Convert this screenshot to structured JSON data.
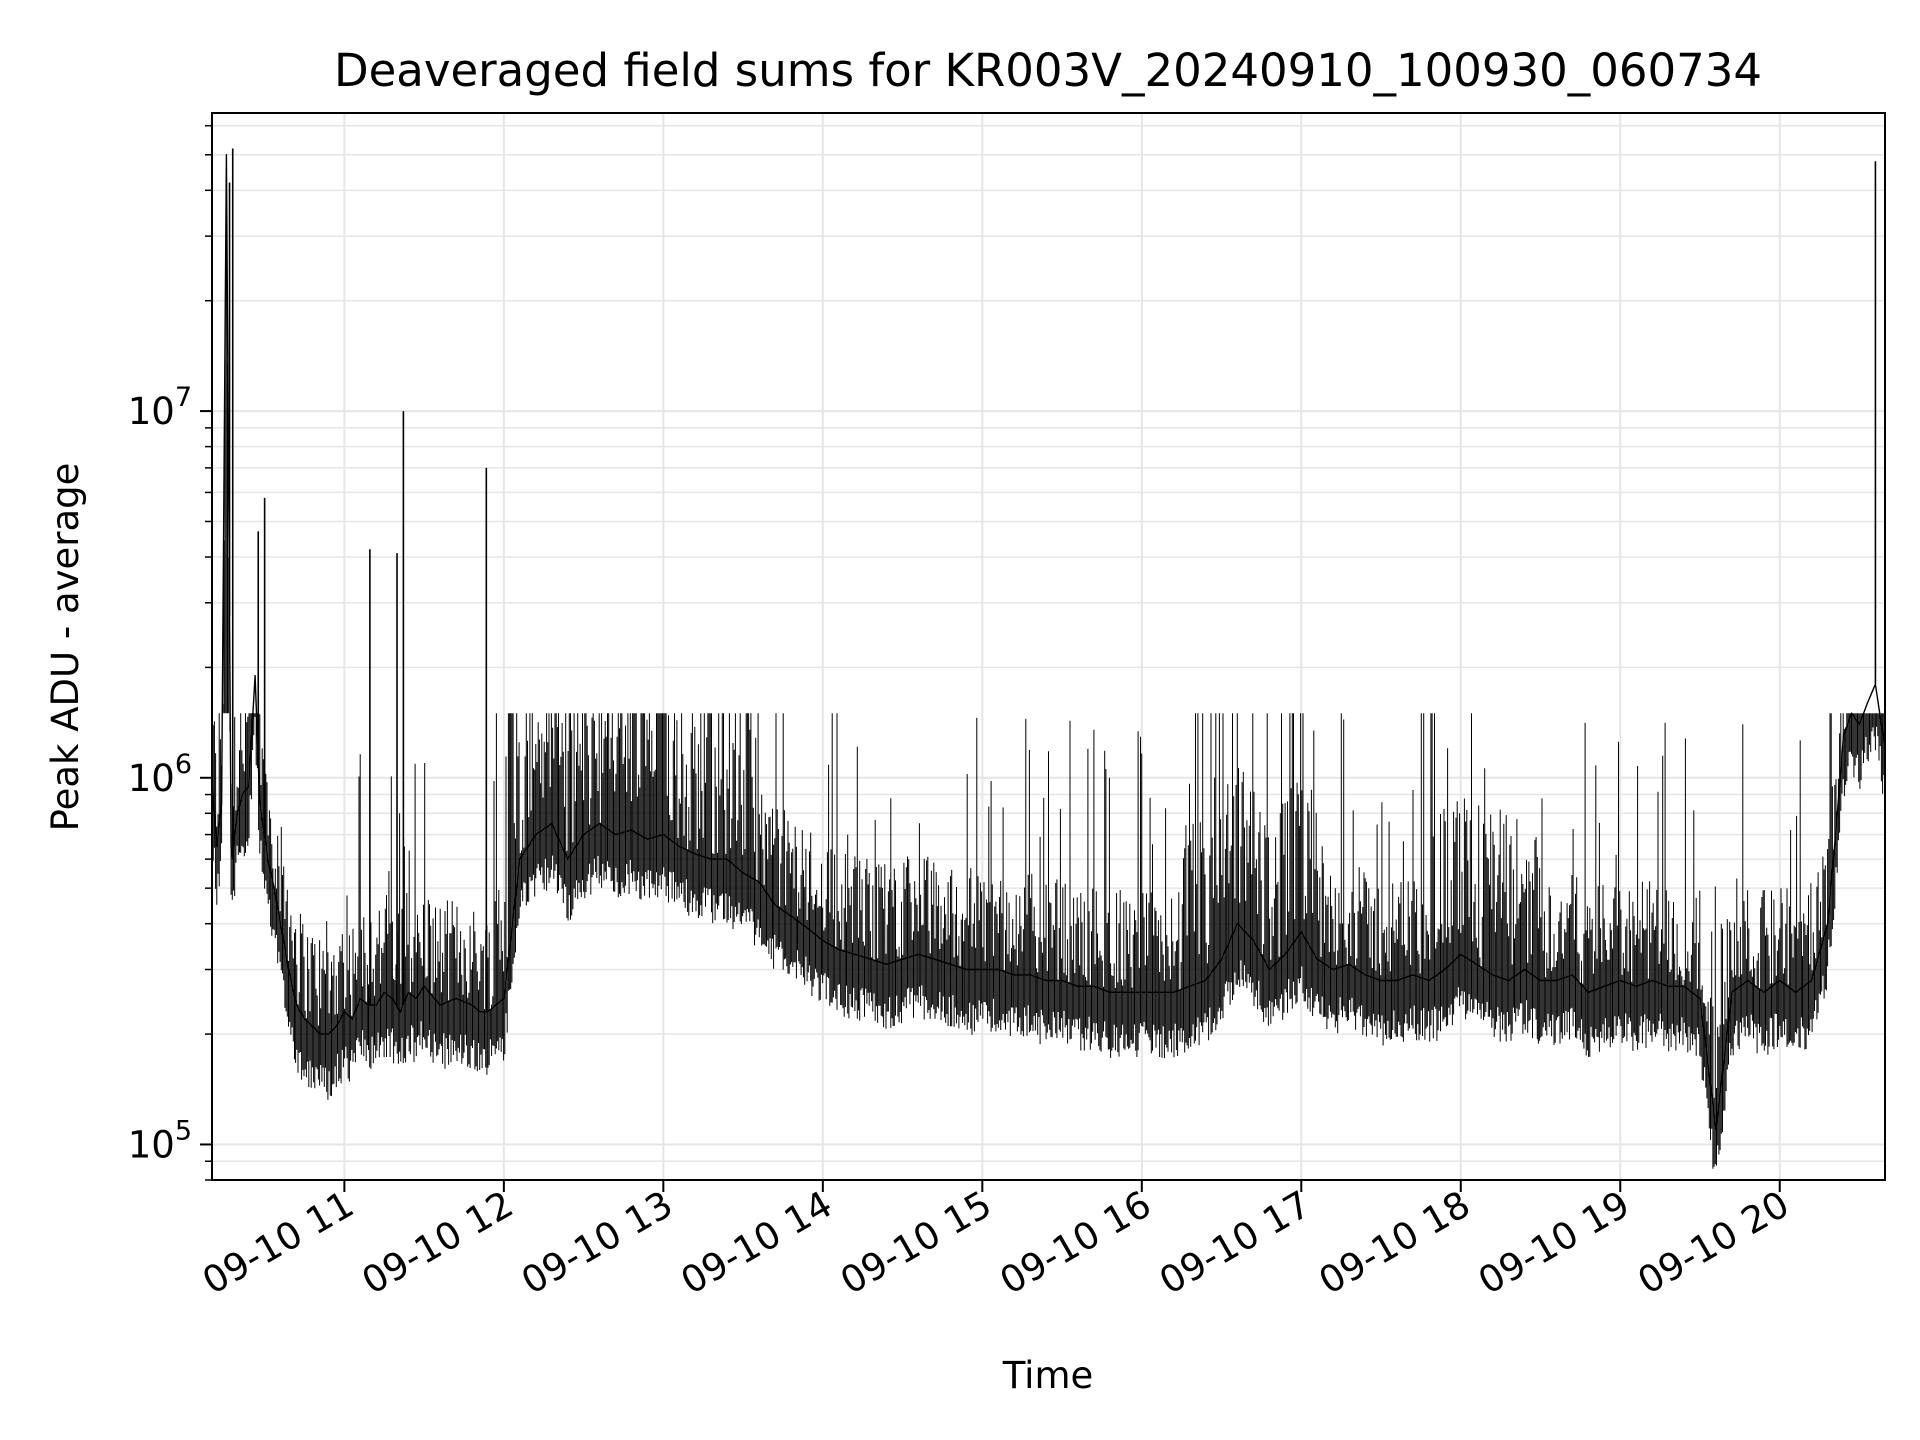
{
  "chart_data": {
    "type": "line",
    "title": "Deaveraged field sums for KR003V_20240910_100930_060734",
    "xlabel": "Time",
    "ylabel": "Peak ADU - average",
    "yscale": "log",
    "ylim": [
      80000,
      65000000
    ],
    "xlim_hours": [
      10.17,
      20.66
    ],
    "grid": true,
    "line_color": "#000000",
    "x_ticks": [
      {
        "hour": 11,
        "label": "09-10 11"
      },
      {
        "hour": 12,
        "label": "09-10 12"
      },
      {
        "hour": 13,
        "label": "09-10 13"
      },
      {
        "hour": 14,
        "label": "09-10 14"
      },
      {
        "hour": 15,
        "label": "09-10 15"
      },
      {
        "hour": 16,
        "label": "09-10 16"
      },
      {
        "hour": 17,
        "label": "09-10 17"
      },
      {
        "hour": 18,
        "label": "09-10 18"
      },
      {
        "hour": 19,
        "label": "09-10 19"
      },
      {
        "hour": 20,
        "label": "09-10 20"
      }
    ],
    "y_ticks": [
      {
        "value": 100000,
        "base": "10",
        "exp": "5"
      },
      {
        "value": 1000000,
        "base": "10",
        "exp": "6"
      },
      {
        "value": 10000000,
        "base": "10",
        "exp": "7"
      }
    ],
    "series": [
      {
        "x": [
          10.17,
          10.2,
          10.23,
          10.26,
          10.29,
          10.3,
          10.31,
          10.33,
          10.36,
          10.4,
          10.44,
          10.47,
          10.5,
          10.52,
          10.56,
          10.6,
          10.65,
          10.7,
          10.75,
          10.8,
          10.85,
          10.9,
          10.95,
          11.0,
          11.05,
          11.1,
          11.15,
          11.2,
          11.25,
          11.3,
          11.35,
          11.4,
          11.45,
          11.5,
          11.6,
          11.7,
          11.8,
          11.85,
          11.9,
          11.95,
          12.0,
          12.1,
          12.2,
          12.3,
          12.4,
          12.5,
          12.6,
          12.7,
          12.8,
          12.9,
          13.0,
          13.1,
          13.2,
          13.3,
          13.4,
          13.5,
          13.6,
          13.7,
          13.8,
          13.9,
          14.0,
          14.1,
          14.2,
          14.3,
          14.4,
          14.5,
          14.6,
          14.7,
          14.8,
          14.9,
          15.0,
          15.1,
          15.2,
          15.3,
          15.4,
          15.5,
          15.6,
          15.7,
          15.8,
          15.9,
          16.0,
          16.1,
          16.2,
          16.3,
          16.4,
          16.5,
          16.6,
          16.7,
          16.8,
          16.9,
          17.0,
          17.1,
          17.2,
          17.3,
          17.4,
          17.5,
          17.6,
          17.7,
          17.8,
          17.9,
          18.0,
          18.1,
          18.2,
          18.3,
          18.4,
          18.5,
          18.6,
          18.7,
          18.8,
          18.9,
          19.0,
          19.1,
          19.2,
          19.3,
          19.4,
          19.5,
          19.6,
          19.7,
          19.8,
          19.9,
          20.0,
          20.1,
          20.2,
          20.3,
          20.35,
          20.4,
          20.45,
          20.5,
          20.55,
          20.6,
          20.66
        ],
        "y": [
          1000000,
          650000,
          850000,
          50000000,
          650000,
          600000,
          700000,
          800000,
          900000,
          950000,
          1900000,
          850000,
          700000,
          600000,
          500000,
          400000,
          300000,
          240000,
          220000,
          210000,
          200000,
          200000,
          210000,
          230000,
          220000,
          250000,
          240000,
          240000,
          260000,
          250000,
          230000,
          260000,
          250000,
          270000,
          240000,
          250000,
          240000,
          230000,
          230000,
          240000,
          250000,
          600000,
          700000,
          750000,
          600000,
          700000,
          750000,
          700000,
          720000,
          680000,
          700000,
          650000,
          620000,
          600000,
          600000,
          550000,
          520000,
          450000,
          420000,
          390000,
          360000,
          340000,
          330000,
          320000,
          310000,
          320000,
          330000,
          320000,
          310000,
          300000,
          300000,
          300000,
          290000,
          290000,
          280000,
          280000,
          270000,
          270000,
          260000,
          260000,
          260000,
          260000,
          260000,
          270000,
          280000,
          320000,
          400000,
          360000,
          300000,
          330000,
          380000,
          320000,
          300000,
          310000,
          290000,
          280000,
          280000,
          290000,
          280000,
          300000,
          330000,
          310000,
          290000,
          280000,
          300000,
          280000,
          280000,
          290000,
          260000,
          270000,
          280000,
          270000,
          280000,
          270000,
          270000,
          250000,
          110000,
          260000,
          280000,
          260000,
          280000,
          260000,
          280000,
          400000,
          700000,
          1300000,
          1500000,
          1400000,
          1600000,
          1800000,
          1200000
        ]
      }
    ],
    "spikes": [
      {
        "x": 10.28,
        "y": 42000000
      },
      {
        "x": 10.3,
        "y": 52000000
      },
      {
        "x": 10.46,
        "y": 4700000
      },
      {
        "x": 10.5,
        "y": 5800000
      },
      {
        "x": 11.16,
        "y": 4200000
      },
      {
        "x": 11.33,
        "y": 4100000
      },
      {
        "x": 11.37,
        "y": 10000000
      },
      {
        "x": 11.89,
        "y": 7000000
      },
      {
        "x": 20.6,
        "y": 48000000
      }
    ]
  }
}
